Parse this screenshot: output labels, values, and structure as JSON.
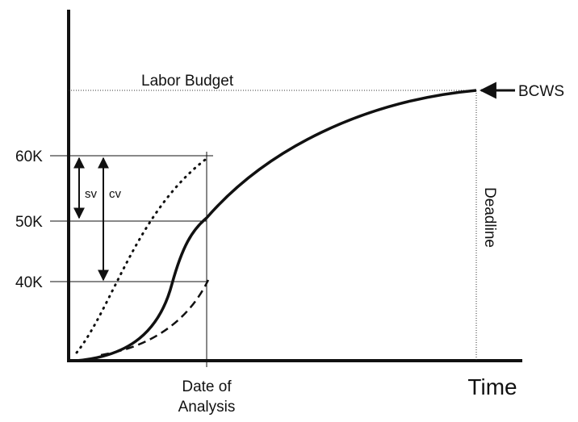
{
  "labels": {
    "labor_budget": "Labor Budget",
    "bcws": "BCWS",
    "deadline": "Deadline",
    "date_of_analysis": [
      "Date of",
      "Analysis"
    ],
    "time": "Time",
    "sv": "sv",
    "cv": "cv"
  },
  "y_labels": [
    "60K",
    "50K",
    "40K"
  ]
}
